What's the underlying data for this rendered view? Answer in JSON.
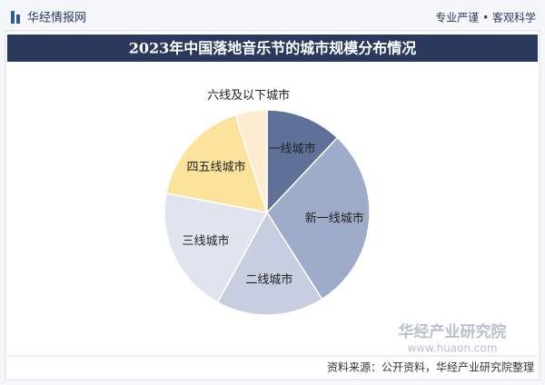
{
  "header": {
    "brand": "华经情报网",
    "slogan": "专业严谨 • 客观科学"
  },
  "chart_data": {
    "type": "pie",
    "title": "2023年中国落地音乐节的城市规模分布情况",
    "categories": [
      "一线城市",
      "新一线城市",
      "二线城市",
      "三线城市",
      "四五线城市",
      "六线及以下城市"
    ],
    "values": [
      12,
      29,
      17,
      20,
      17,
      5
    ],
    "colors": [
      "#5f7198",
      "#9eabc9",
      "#c6cee0",
      "#dfe4ee",
      "#fbe39c",
      "#fdeccf"
    ]
  },
  "footer": {
    "source": "资料来源：公开资料，华经产业研究院整理",
    "watermark_name": "华经产业研究院",
    "watermark_url": "www.huaon.com"
  }
}
